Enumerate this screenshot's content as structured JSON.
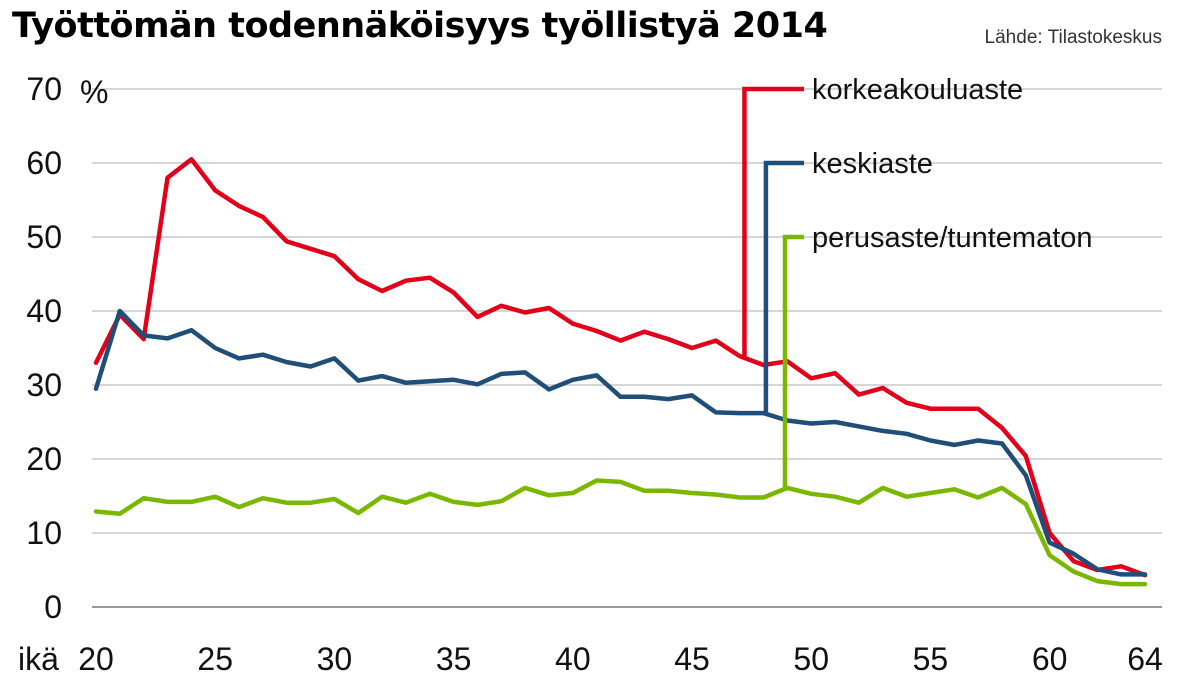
{
  "title": "Työttömän todennäköisyys työllistyä 2014",
  "source": "Lähde: Tilastokeskus",
  "chart_data": {
    "type": "line",
    "title": "Työttömän todennäköisyys työllistyä 2014",
    "ylabel": "%",
    "xlabel": "ikä",
    "ylim": [
      0,
      70
    ],
    "xlim": [
      20,
      64
    ],
    "yticks": [
      0,
      10,
      20,
      30,
      40,
      50,
      60,
      70
    ],
    "xticks": [
      20,
      25,
      30,
      35,
      40,
      45,
      50,
      55,
      60,
      64
    ],
    "grid": "horizontal",
    "legend_position": "top-right, inline labels",
    "x": [
      20,
      21,
      22,
      23,
      24,
      25,
      26,
      27,
      28,
      29,
      30,
      31,
      32,
      33,
      34,
      35,
      36,
      37,
      38,
      39,
      40,
      41,
      42,
      43,
      44,
      45,
      46,
      47,
      48,
      49,
      50,
      51,
      52,
      53,
      54,
      55,
      56,
      57,
      58,
      59,
      60,
      61,
      62,
      63,
      64
    ],
    "series": [
      {
        "name": "korkeakouluaste",
        "color": "#e2001a",
        "values": [
          33,
          39.5,
          36.2,
          58,
          60.5,
          56.3,
          54.2,
          52.7,
          49.4,
          48.4,
          47.4,
          44.3,
          42.7,
          44.1,
          44.5,
          42.5,
          39.2,
          40.7,
          39.8,
          40.4,
          38.3,
          37.3,
          36,
          37.2,
          36.2,
          35,
          36,
          33.9,
          32.7,
          33.2,
          30.9,
          31.6,
          28.7,
          29.6,
          27.6,
          26.8,
          26.8,
          26.8,
          24.2,
          20.4,
          10,
          6.2,
          5,
          5.5,
          4.3
        ]
      },
      {
        "name": "keskiaste",
        "color": "#1f4e79",
        "values": [
          29.5,
          40,
          36.7,
          36.3,
          37.4,
          35,
          33.6,
          34.1,
          33.1,
          32.5,
          33.6,
          30.6,
          31.2,
          30.3,
          30.5,
          30.7,
          30.1,
          31.5,
          31.7,
          29.4,
          30.7,
          31.3,
          28.4,
          28.4,
          28.1,
          28.6,
          26.3,
          26.2,
          26.2,
          25.2,
          24.8,
          25,
          24.4,
          23.8,
          23.4,
          22.5,
          21.9,
          22.5,
          22.1,
          17.8,
          8.7,
          7.2,
          5.1,
          4.4,
          4.4
        ]
      },
      {
        "name": "perusaste/tuntematon",
        "color": "#7ab800",
        "values": [
          12.9,
          12.6,
          14.7,
          14.2,
          14.2,
          14.9,
          13.5,
          14.7,
          14.1,
          14.1,
          14.6,
          12.7,
          14.9,
          14.1,
          15.3,
          14.2,
          13.8,
          14.3,
          16.1,
          15.1,
          15.4,
          17.1,
          16.9,
          15.7,
          15.7,
          15.4,
          15.2,
          14.8,
          14.8,
          16.1,
          15.3,
          14.9,
          14.1,
          16.1,
          14.9,
          15.4,
          15.9,
          14.8,
          16.1,
          13.9,
          7,
          4.8,
          3.5,
          3.1,
          3.1
        ]
      }
    ]
  },
  "legend": [
    {
      "label": "korkeakouluaste",
      "color": "#e2001a"
    },
    {
      "label": "keskiaste",
      "color": "#1f4e79"
    },
    {
      "label": "perusaste/tuntematon",
      "color": "#7ab800"
    }
  ],
  "y_unit": "%",
  "x_label": "ikä"
}
